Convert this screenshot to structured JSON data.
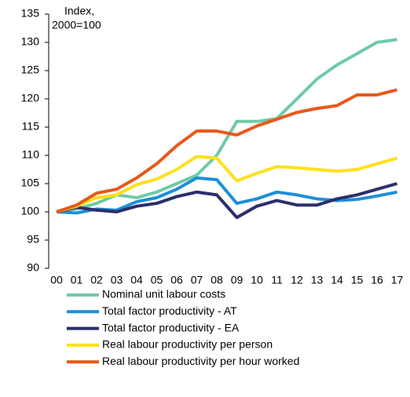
{
  "chart_data": {
    "type": "line",
    "annotation": [
      "Index,",
      "2000=100"
    ],
    "categories": [
      "00",
      "01",
      "02",
      "03",
      "04",
      "05",
      "06",
      "07",
      "08",
      "09",
      "10",
      "11",
      "12",
      "13",
      "14",
      "15",
      "16",
      "17"
    ],
    "series": [
      {
        "name": "Nominal unit labour costs",
        "color": "#6fcaa6",
        "values": [
          100,
          100.5,
          101.5,
          103,
          102.5,
          103.5,
          105,
          106.5,
          110,
          116,
          116,
          116.5,
          120,
          123.5,
          126,
          128,
          130,
          130.5
        ]
      },
      {
        "name": "Total factor productivity - AT",
        "color": "#1e8fd8",
        "values": [
          100,
          99.8,
          100.5,
          100.3,
          101.8,
          102.5,
          104,
          106,
          105.7,
          101.5,
          102.3,
          103.5,
          103,
          102.3,
          102,
          102.2,
          102.8,
          103.5
        ]
      },
      {
        "name": "Total factor productivity - EA",
        "color": "#2b2f6b",
        "values": [
          100,
          100.8,
          100.3,
          100,
          101,
          101.5,
          102.7,
          103.5,
          103,
          99,
          101,
          102,
          101.2,
          101.2,
          102.3,
          103,
          104,
          105
        ]
      },
      {
        "name": "Real labour productivity per person",
        "color": "#ffe11a",
        "values": [
          100,
          101,
          102.5,
          103,
          104.8,
          105.8,
          107.5,
          109.8,
          109.5,
          105.5,
          106.8,
          108,
          107.8,
          107.5,
          107.2,
          107.5,
          108.5,
          109.5
        ]
      },
      {
        "name": "Real labour productivity per hour worked",
        "color": "#e8591a",
        "values": [
          100,
          101.2,
          103.3,
          104,
          106,
          108.5,
          111.7,
          114.3,
          114.3,
          113.6,
          115.2,
          116.4,
          117.6,
          118.3,
          118.8,
          120.7,
          120.7,
          121.6
        ]
      }
    ],
    "ylim": [
      90,
      135
    ],
    "yticks": [
      90,
      95,
      100,
      105,
      110,
      115,
      120,
      125,
      130,
      135
    ]
  }
}
